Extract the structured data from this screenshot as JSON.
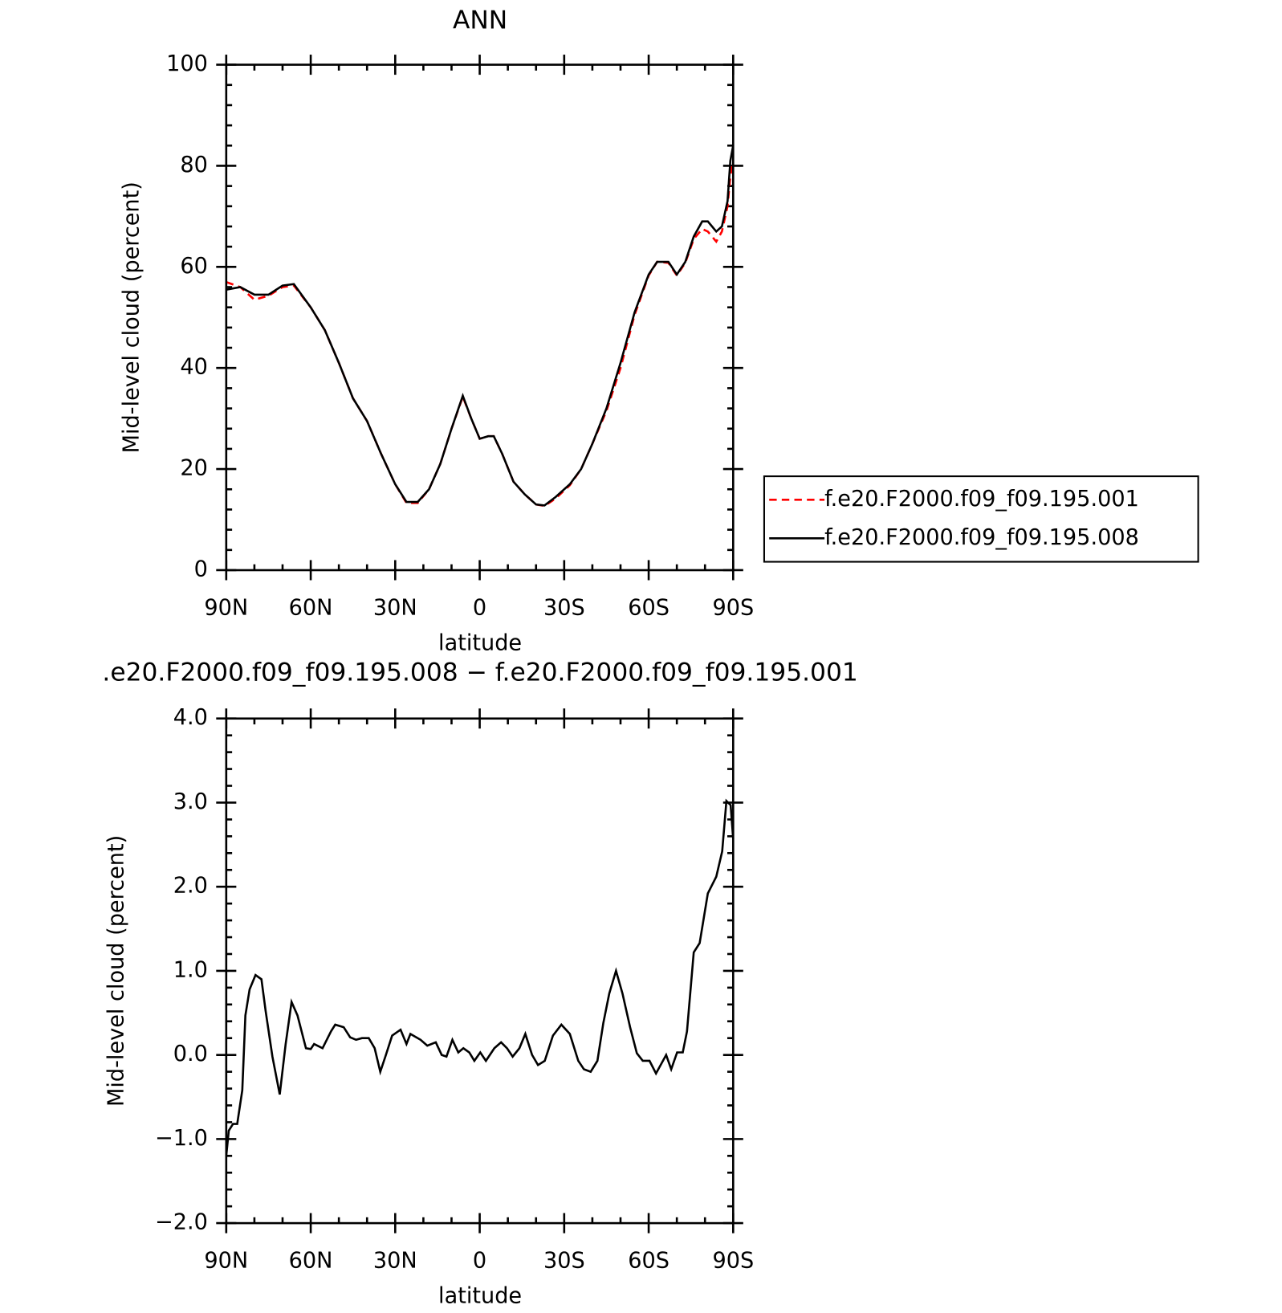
{
  "chart_data": [
    {
      "type": "line",
      "title": "ANN",
      "x_label": "latitude",
      "y_label": "Mid-level cloud (percent)",
      "xlim": [
        90,
        -90
      ],
      "xticks": [
        {
          "value": 90,
          "label": "90N"
        },
        {
          "value": 60,
          "label": "60N"
        },
        {
          "value": 30,
          "label": "30N"
        },
        0,
        {
          "value": -30,
          "label": "30S"
        },
        {
          "value": -60,
          "label": "60S"
        },
        {
          "value": -90,
          "label": "90S"
        }
      ],
      "ylim": [
        0,
        100
      ],
      "yticks": [
        0,
        20,
        40,
        60,
        80,
        100
      ],
      "legend": "right",
      "x": [
        90,
        85,
        80,
        75,
        70,
        66,
        60,
        55,
        50,
        45,
        40,
        35,
        30,
        26,
        22,
        18,
        14,
        10,
        6,
        3,
        0,
        -3,
        -5,
        -8,
        -12,
        -16,
        -20,
        -23,
        -27,
        -32,
        -36,
        -40,
        -45,
        -50,
        -55,
        -60,
        -63,
        -67,
        -70,
        -73,
        -76,
        -79,
        -81,
        -84,
        -86,
        -88,
        -89,
        -90
      ],
      "series": [
        {
          "name": "f.e20.F2000.f09_f09.195.001",
          "color": "#ff0000",
          "line_style": "dashed",
          "values": [
            57,
            56,
            53.5,
            54.3,
            56,
            56.3,
            52,
            47.5,
            41,
            34,
            29.5,
            23,
            17,
            13.3,
            13.3,
            16,
            21,
            28,
            34.3,
            30,
            26,
            26.5,
            26.5,
            23,
            17.5,
            15,
            13,
            12.7,
            14.2,
            16.8,
            20,
            25,
            31.5,
            40,
            50.5,
            58.3,
            61,
            60.8,
            58.3,
            60.8,
            65.5,
            67.5,
            67,
            65,
            67,
            72,
            78,
            81
          ]
        },
        {
          "name": "f.e20.F2000.f09_f09.195.008",
          "color": "#000000",
          "line_style": "solid",
          "values": [
            55.5,
            56,
            54.5,
            54.5,
            56.3,
            56.6,
            52,
            47.5,
            41,
            34,
            29.5,
            23,
            17,
            13.5,
            13.5,
            16,
            21,
            28,
            34.5,
            30,
            26,
            26.5,
            26.5,
            23,
            17.5,
            15,
            13,
            12.8,
            14.5,
            17,
            20,
            25,
            32,
            41,
            51,
            58.5,
            61,
            61,
            58.5,
            61,
            66,
            69,
            69,
            67,
            68,
            73,
            81,
            84
          ]
        }
      ]
    },
    {
      "type": "line",
      "title": ".e20.F2000.f09_f09.195.008 − f.e20.F2000.f09_f09.195.001",
      "x_label": "latitude",
      "y_label": "Mid-level cloud (percent)",
      "xlim": [
        90,
        -90
      ],
      "xticks": [
        {
          "value": 90,
          "label": "90N"
        },
        {
          "value": 60,
          "label": "60N"
        },
        {
          "value": 30,
          "label": "30N"
        },
        0,
        {
          "value": -30,
          "label": "30S"
        },
        {
          "value": -60,
          "label": "60S"
        },
        {
          "value": -90,
          "label": "90S"
        }
      ],
      "ylim": [
        -2,
        4
      ],
      "yticks": [
        {
          "value": -2,
          "label": "−2.0"
        },
        {
          "value": -1,
          "label": "−1.0"
        },
        {
          "value": 0,
          "label": "0.0"
        },
        {
          "value": 1,
          "label": "1.0"
        },
        {
          "value": 2,
          "label": "2.0"
        },
        {
          "value": 3,
          "label": "3.0"
        },
        {
          "value": 4,
          "label": "4.0"
        }
      ],
      "x": [
        90,
        89.1,
        87.6,
        86.1,
        84.3,
        83.2,
        81.7,
        79.6,
        77.5,
        76,
        73.6,
        71,
        68.9,
        66.8,
        64.7,
        61.7,
        60,
        58.8,
        55.8,
        52.8,
        51.3,
        48.3,
        46,
        43.9,
        41.8,
        39.4,
        37.3,
        35.3,
        33.5,
        31.1,
        28.1,
        26,
        24.6,
        21,
        18.6,
        15.6,
        13.5,
        11.8,
        9.7,
        7.6,
        5.8,
        3.7,
        1.9,
        -0.2,
        -2.2,
        -5.2,
        -7.6,
        -9.7,
        -11.7,
        -14.1,
        -16.2,
        -18.6,
        -20.7,
        -23.1,
        -26,
        -29,
        -32,
        -35,
        -37,
        -39.4,
        -41.8,
        -43.9,
        -46,
        -48.4,
        -50.7,
        -53.4,
        -55.8,
        -57.9,
        -60.3,
        -62.6,
        -66.2,
        -68,
        -70.1,
        -72.1,
        -73.6,
        -76,
        -78.1,
        -81,
        -84,
        -86.1,
        -87.6,
        -89.1,
        -90
      ],
      "series": [
        {
          "color": "#000000",
          "line_style": "solid",
          "values": [
            -1.2,
            -0.9,
            -0.82,
            -0.82,
            -0.42,
            0.47,
            0.78,
            0.95,
            0.9,
            0.52,
            -0.02,
            -0.47,
            0.13,
            0.63,
            0.47,
            0.08,
            0.07,
            0.13,
            0.08,
            0.28,
            0.36,
            0.33,
            0.21,
            0.18,
            0.2,
            0.2,
            0.08,
            -0.2,
            -0.02,
            0.23,
            0.3,
            0.13,
            0.25,
            0.18,
            0.11,
            0.15,
            0,
            -0.02,
            0.18,
            0.03,
            0.08,
            0.03,
            -0.07,
            0.03,
            -0.07,
            0.08,
            0.15,
            0.08,
            -0.02,
            0.08,
            0.25,
            0,
            -0.12,
            -0.07,
            0.23,
            0.36,
            0.25,
            -0.07,
            -0.17,
            -0.2,
            -0.07,
            0.38,
            0.73,
            1.0,
            0.73,
            0.33,
            0.02,
            -0.07,
            -0.07,
            -0.22,
            0,
            -0.17,
            0.03,
            0.03,
            0.28,
            1.22,
            1.33,
            1.92,
            2.12,
            2.42,
            3.02,
            2.97,
            2.57
          ]
        }
      ]
    }
  ]
}
